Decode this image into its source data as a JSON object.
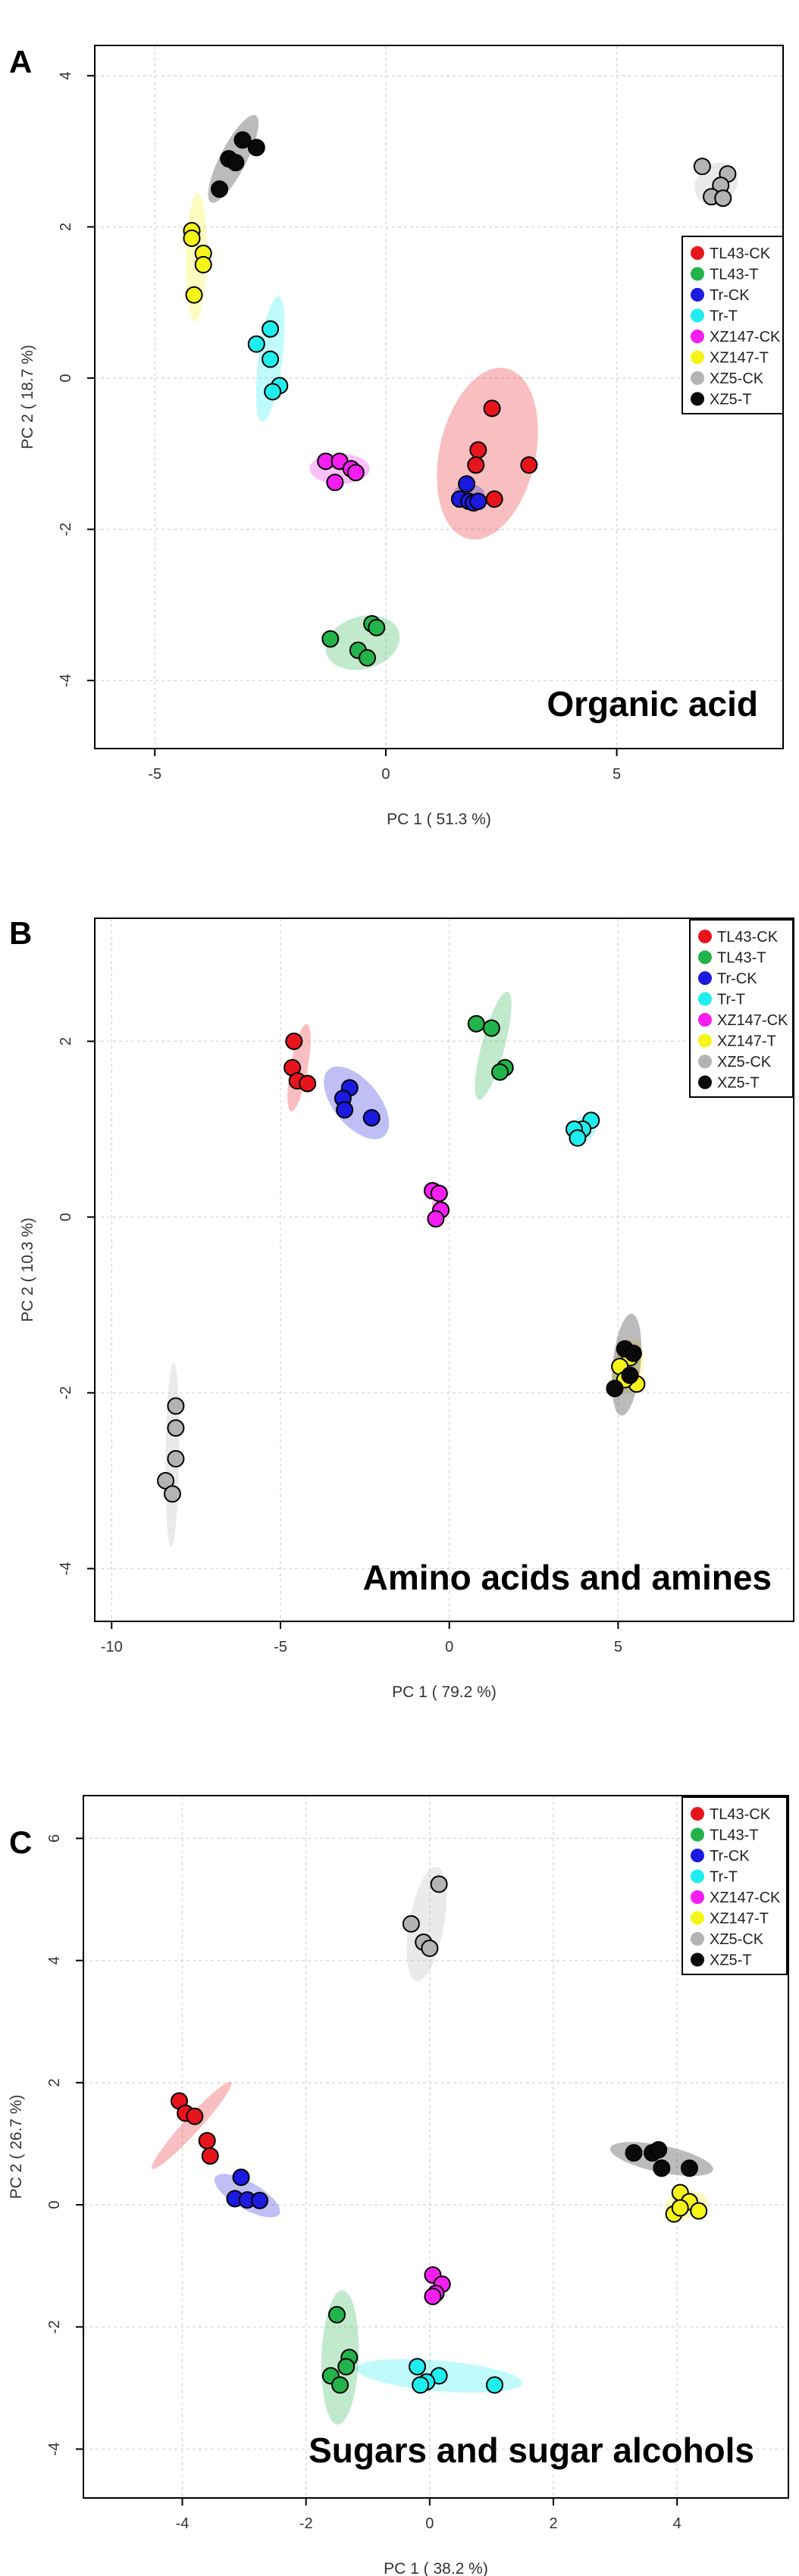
{
  "figure": {
    "legend_entries": [
      {
        "label": "TL43-CK",
        "color": "#e8141c"
      },
      {
        "label": "TL43-T",
        "color": "#22b34a"
      },
      {
        "label": "Tr-CK",
        "color": "#1a1ae0"
      },
      {
        "label": "Tr-T",
        "color": "#20eeee"
      },
      {
        "label": "XZ147-CK",
        "color": "#f51ef0"
      },
      {
        "label": "XZ147-T",
        "color": "#f5f51a"
      },
      {
        "label": "XZ5-CK",
        "color": "#b3b3b3"
      },
      {
        "label": "XZ5-T",
        "color": "#0a0a0a"
      }
    ]
  },
  "chart_data": [
    {
      "type": "scatter",
      "panel_letter": "A",
      "title": "Organic acid",
      "xlabel": "PC 1 ( 51.3 %)",
      "ylabel": "PC 2 ( 18.7 %)",
      "xlim": [
        -6.3,
        8.6
      ],
      "ylim": [
        -4.9,
        4.4
      ],
      "xticks": [
        -5,
        0,
        5
      ],
      "yticks": [
        -4,
        -2,
        0,
        2,
        4
      ],
      "legend_position": "right",
      "series": [
        {
          "name": "TL43-CK",
          "points": [
            [
              2.3,
              -0.4
            ],
            [
              2.0,
              -0.95
            ],
            [
              1.95,
              -1.15
            ],
            [
              3.1,
              -1.15
            ],
            [
              2.35,
              -1.6
            ]
          ],
          "ellipse": {
            "cx": 2.2,
            "cy": -1.0,
            "rx": 1.2,
            "ry": 0.95,
            "angle": 70
          }
        },
        {
          "name": "TL43-T",
          "points": [
            [
              -1.2,
              -3.45
            ],
            [
              -0.3,
              -3.25
            ],
            [
              -0.2,
              -3.3
            ],
            [
              -0.6,
              -3.6
            ],
            [
              -0.4,
              -3.7
            ]
          ],
          "ellipse": {
            "cx": -0.5,
            "cy": -3.5,
            "rx": 0.8,
            "ry": 0.35,
            "angle": 10
          }
        },
        {
          "name": "Tr-CK",
          "points": [
            [
              1.75,
              -1.4
            ],
            [
              1.6,
              -1.6
            ],
            [
              1.8,
              -1.63
            ],
            [
              1.9,
              -1.65
            ],
            [
              2.0,
              -1.63
            ]
          ],
          "ellipse": {
            "cx": 1.8,
            "cy": -1.55,
            "rx": 0.35,
            "ry": 0.15,
            "angle": 0
          }
        },
        {
          "name": "Tr-T",
          "points": [
            [
              -2.5,
              0.65
            ],
            [
              -2.8,
              0.45
            ],
            [
              -2.5,
              0.25
            ],
            [
              -2.3,
              -0.1
            ],
            [
              -2.45,
              -0.18
            ]
          ],
          "ellipse": {
            "cx": -2.5,
            "cy": 0.25,
            "rx": 0.85,
            "ry": 0.25,
            "angle": 78
          }
        },
        {
          "name": "XZ147-CK",
          "points": [
            [
              -1.3,
              -1.1
            ],
            [
              -1.0,
              -1.1
            ],
            [
              -0.75,
              -1.2
            ],
            [
              -0.65,
              -1.25
            ],
            [
              -1.1,
              -1.38
            ]
          ],
          "ellipse": {
            "cx": -1.0,
            "cy": -1.2,
            "rx": 0.65,
            "ry": 0.2,
            "angle": 0
          }
        },
        {
          "name": "XZ147-T",
          "points": [
            [
              -4.2,
              1.95
            ],
            [
              -4.2,
              1.85
            ],
            [
              -3.95,
              1.65
            ],
            [
              -3.95,
              1.5
            ],
            [
              -4.15,
              1.1
            ]
          ],
          "ellipse": {
            "cx": -4.1,
            "cy": 1.6,
            "rx": 0.85,
            "ry": 0.22,
            "angle": 88
          }
        },
        {
          "name": "XZ5-CK",
          "points": [
            [
              6.85,
              2.8
            ],
            [
              7.4,
              2.7
            ],
            [
              7.25,
              2.55
            ],
            [
              7.05,
              2.4
            ],
            [
              7.3,
              2.38
            ]
          ],
          "ellipse": {
            "cx": 7.15,
            "cy": 2.57,
            "rx": 0.42,
            "ry": 0.28,
            "angle": 30
          }
        },
        {
          "name": "XZ5-T",
          "points": [
            [
              -3.1,
              3.15
            ],
            [
              -2.8,
              3.05
            ],
            [
              -3.4,
              2.9
            ],
            [
              -3.25,
              2.85
            ],
            [
              -3.6,
              2.5
            ]
          ],
          "ellipse": {
            "cx": -3.3,
            "cy": 2.9,
            "rx": 0.75,
            "ry": 0.22,
            "angle": 50
          }
        }
      ]
    },
    {
      "type": "scatter",
      "panel_letter": "B",
      "title": "Amino acids and amines",
      "xlabel": "PC 1 ( 79.2 %)",
      "ylabel": "PC 2 ( 10.3 %)",
      "xlim": [
        -10.5,
        10.2
      ],
      "ylim": [
        -4.6,
        3.4
      ],
      "xticks": [
        -10,
        -5,
        0,
        5
      ],
      "yticks": [
        -4,
        -2,
        0,
        2
      ],
      "legend_position": "top-right",
      "series": [
        {
          "name": "TL43-CK",
          "points": [
            [
              -4.6,
              2.0
            ],
            [
              -4.65,
              1.7
            ],
            [
              -4.5,
              1.55
            ],
            [
              -4.2,
              1.52
            ]
          ],
          "ellipse": {
            "cx": -4.45,
            "cy": 1.7,
            "rx": 0.55,
            "ry": 0.18,
            "angle": 65
          }
        },
        {
          "name": "TL43-T",
          "points": [
            [
              0.8,
              2.2
            ],
            [
              1.25,
              2.15
            ],
            [
              1.65,
              1.7
            ],
            [
              1.5,
              1.65
            ]
          ],
          "ellipse": {
            "cx": 1.3,
            "cy": 1.95,
            "rx": 0.75,
            "ry": 0.2,
            "angle": 55
          }
        },
        {
          "name": "Tr-CK",
          "points": [
            [
              -2.95,
              1.47
            ],
            [
              -3.15,
              1.35
            ],
            [
              -3.1,
              1.22
            ],
            [
              -2.3,
              1.13
            ]
          ],
          "ellipse": {
            "cx": -2.75,
            "cy": 1.3,
            "rx": 0.9,
            "ry": 0.28,
            "angle": -25
          }
        },
        {
          "name": "Tr-T",
          "points": [
            [
              4.2,
              1.1
            ],
            [
              3.95,
              1.0
            ],
            [
              3.7,
              1.0
            ],
            [
              3.8,
              0.9
            ]
          ],
          "ellipse": {
            "cx": 3.95,
            "cy": 1.0,
            "rx": 0.3,
            "ry": 0.15,
            "angle": 20
          }
        },
        {
          "name": "XZ147-CK",
          "points": [
            [
              -0.5,
              0.3
            ],
            [
              -0.3,
              0.27
            ],
            [
              -0.25,
              0.08
            ],
            [
              -0.4,
              -0.02
            ]
          ],
          "ellipse": {
            "cx": -0.38,
            "cy": 0.15,
            "rx": 0.25,
            "ry": 0.12,
            "angle": 80
          }
        },
        {
          "name": "XZ147-T",
          "points": [
            [
              5.35,
              -1.6
            ],
            [
              5.05,
              -1.7
            ],
            [
              5.55,
              -1.9
            ],
            [
              5.2,
              -1.85
            ]
          ],
          "ellipse": {
            "cx": 5.3,
            "cy": -1.7,
            "rx": 0.35,
            "ry": 0.28,
            "angle": 60
          }
        },
        {
          "name": "XZ5-CK",
          "points": [
            [
              -8.1,
              -2.15
            ],
            [
              -8.1,
              -2.4
            ],
            [
              -8.1,
              -2.75
            ],
            [
              -8.4,
              -3.0
            ],
            [
              -8.2,
              -3.15
            ]
          ],
          "ellipse": {
            "cx": -8.2,
            "cy": -2.7,
            "rx": 1.05,
            "ry": 0.2,
            "angle": 88
          }
        },
        {
          "name": "XZ5-T",
          "points": [
            [
              5.2,
              -1.5
            ],
            [
              5.45,
              -1.55
            ],
            [
              5.35,
              -1.8
            ],
            [
              4.9,
              -1.95
            ]
          ],
          "ellipse": {
            "cx": 5.25,
            "cy": -1.68,
            "rx": 0.6,
            "ry": 0.35,
            "angle": 75
          }
        }
      ]
    },
    {
      "type": "scatter",
      "panel_letter": "C",
      "title": "Sugars and sugar alcohols",
      "xlabel": "PC 1 ( 38.2 %)",
      "ylabel": "PC 2 ( 26.7 %)",
      "xlim": [
        -5.6,
        5.8
      ],
      "ylim": [
        -4.8,
        6.7
      ],
      "xticks": [
        -4,
        -2,
        0,
        2,
        4
      ],
      "yticks": [
        -4,
        -2,
        0,
        2,
        4,
        6
      ],
      "legend_position": "top-right",
      "series": [
        {
          "name": "TL43-CK",
          "points": [
            [
              -4.05,
              1.7
            ],
            [
              -3.95,
              1.5
            ],
            [
              -3.8,
              1.45
            ],
            [
              -3.6,
              1.05
            ],
            [
              -3.55,
              0.8
            ]
          ],
          "ellipse": {
            "cx": -3.85,
            "cy": 1.3,
            "rx": 0.95,
            "ry": 0.13,
            "angle": 48
          }
        },
        {
          "name": "TL43-T",
          "points": [
            [
              -1.5,
              -1.8
            ],
            [
              -1.3,
              -2.5
            ],
            [
              -1.35,
              -2.65
            ],
            [
              -1.6,
              -2.8
            ],
            [
              -1.45,
              -2.95
            ]
          ],
          "ellipse": {
            "cx": -1.45,
            "cy": -2.5,
            "rx": 1.1,
            "ry": 0.3,
            "angle": 88
          }
        },
        {
          "name": "Tr-CK",
          "points": [
            [
              -3.05,
              0.45
            ],
            [
              -3.15,
              0.1
            ],
            [
              -2.95,
              0.08
            ],
            [
              -2.75,
              0.07
            ]
          ],
          "ellipse": {
            "cx": -2.95,
            "cy": 0.15,
            "rx": 0.6,
            "ry": 0.22,
            "angle": -30
          }
        },
        {
          "name": "Tr-T",
          "points": [
            [
              -0.2,
              -2.65
            ],
            [
              0.15,
              -2.8
            ],
            [
              -0.05,
              -2.9
            ],
            [
              -0.15,
              -2.95
            ],
            [
              1.05,
              -2.95
            ]
          ],
          "ellipse": {
            "cx": 0.15,
            "cy": -2.8,
            "rx": 1.35,
            "ry": 0.25,
            "angle": -5
          }
        },
        {
          "name": "XZ147-CK",
          "points": [
            [
              0.05,
              -1.15
            ],
            [
              0.2,
              -1.3
            ],
            [
              0.1,
              -1.45
            ],
            [
              0.05,
              -1.5
            ]
          ],
          "ellipse": {
            "cx": 0.1,
            "cy": -1.35,
            "rx": 0.3,
            "ry": 0.1,
            "angle": 85
          }
        },
        {
          "name": "XZ147-T",
          "points": [
            [
              4.05,
              0.2
            ],
            [
              3.95,
              -0.15
            ],
            [
              4.2,
              0.05
            ],
            [
              4.35,
              -0.1
            ],
            [
              4.05,
              -0.05
            ]
          ],
          "ellipse": {
            "cx": 4.15,
            "cy": 0.0,
            "rx": 0.35,
            "ry": 0.22,
            "angle": 10
          }
        },
        {
          "name": "XZ5-CK",
          "points": [
            [
              0.15,
              5.25
            ],
            [
              -0.3,
              4.6
            ],
            [
              -0.1,
              4.3
            ],
            [
              0.0,
              4.2
            ]
          ],
          "ellipse": {
            "cx": -0.05,
            "cy": 4.6,
            "rx": 0.95,
            "ry": 0.28,
            "angle": 80
          }
        },
        {
          "name": "XZ5-T",
          "points": [
            [
              3.3,
              0.85
            ],
            [
              3.6,
              0.85
            ],
            [
              3.7,
              0.9
            ],
            [
              3.75,
              0.6
            ],
            [
              4.2,
              0.6
            ]
          ],
          "ellipse": {
            "cx": 3.75,
            "cy": 0.75,
            "rx": 0.85,
            "ry": 0.22,
            "angle": -12
          }
        }
      ]
    }
  ]
}
